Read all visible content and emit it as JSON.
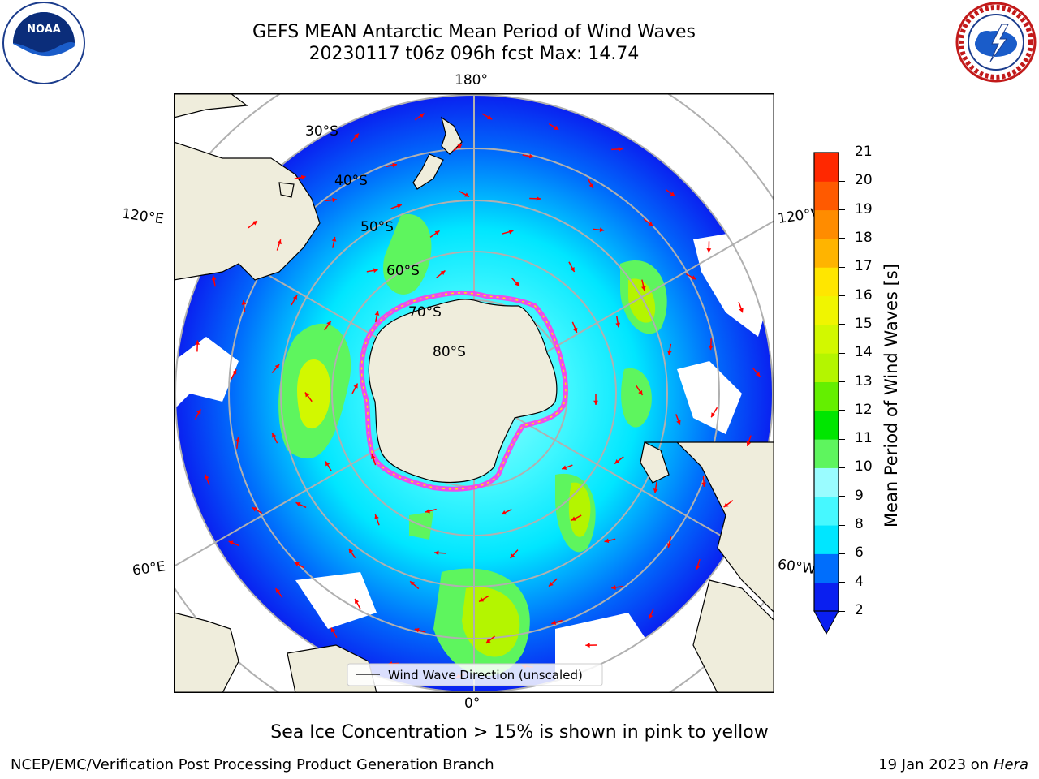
{
  "title": {
    "line1": "GEFS MEAN Antarctic Mean Period of Wind Waves",
    "line2": "20230117 t06z 096h fcst   Max: 14.74"
  },
  "logos": {
    "left": "noaa-logo",
    "right": "nws-logo"
  },
  "map": {
    "longitude_labels": {
      "top": "180°",
      "bottom": "0°",
      "left_upper": "120°E",
      "left_lower": "60°E",
      "right_upper": "120°W",
      "right_lower": "60°W"
    },
    "latitude_labels": [
      "30°S",
      "40°S",
      "50°S",
      "60°S",
      "70°S",
      "80°S"
    ],
    "legend_entry": "Wind Wave Direction (unscaled)",
    "colors": {
      "land": "#efeddc",
      "ocean_edge": "#0a1ff0",
      "ocean_mid": "#00e6ff",
      "ocean_light": "#9afcff",
      "wave_green": "#5ef55e",
      "wave_yellow": "#e8f500",
      "sea_ice": "#ff3ce8",
      "arrow": "#ff0000",
      "grid": "#b0b0b0"
    }
  },
  "colorbar": {
    "label": "Mean Period of Wind Waves [s]",
    "ticks": [
      "2",
      "4",
      "6",
      "8",
      "9",
      "10",
      "11",
      "12",
      "13",
      "14",
      "15",
      "16",
      "17",
      "18",
      "19",
      "20",
      "21"
    ],
    "colors": [
      "#0a1ff0",
      "#006efc",
      "#00e6ff",
      "#46f8ff",
      "#9afcff",
      "#5ef55e",
      "#00e600",
      "#64ef00",
      "#b4f500",
      "#d2f800",
      "#f0f500",
      "#ffe600",
      "#ffb400",
      "#ff8c00",
      "#ff5a00",
      "#ff2800",
      "#ff0000"
    ]
  },
  "bottom_note": "Sea Ice Concentration > 15% is shown in pink to yellow",
  "footer": {
    "left": "NCEP/EMC/Verification Post Processing Product Generation Branch",
    "right_date": "19 Jan 2023 on ",
    "right_host": "Hera"
  }
}
